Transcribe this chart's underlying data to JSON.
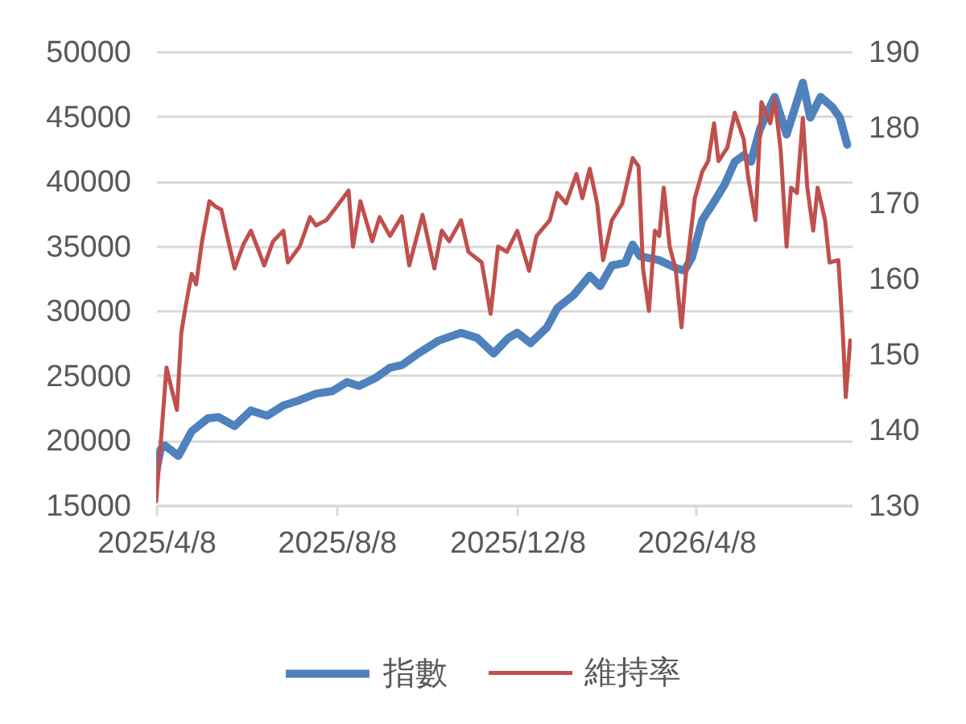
{
  "chart_data": {
    "type": "line",
    "xlim": [
      "2025-04-08",
      "2026-07-22"
    ],
    "xticks": [
      {
        "value": "2025-04-08",
        "label": "2025/4/8"
      },
      {
        "value": "2025-08-08",
        "label": "2025/8/8"
      },
      {
        "value": "2025-12-08",
        "label": "2025/12/8"
      },
      {
        "value": "2026-04-08",
        "label": "2026/4/8"
      }
    ],
    "ylim": [
      15000,
      50000
    ],
    "yticks": [
      15000,
      20000,
      25000,
      30000,
      35000,
      40000,
      45000,
      50000
    ],
    "y2lim": [
      130,
      190
    ],
    "y2ticks": [
      130,
      140,
      150,
      160,
      170,
      180,
      190
    ],
    "grid": "y",
    "legend": "bottom",
    "series": [
      {
        "name": "指數",
        "color": "#4f81bd",
        "x": [
          "2025-04-08",
          "2025-04-11",
          "2025-04-14",
          "2025-04-23",
          "2025-05-02",
          "2025-05-13",
          "2025-05-20",
          "2025-05-31",
          "2025-06-11",
          "2025-06-22",
          "2025-07-03",
          "2025-07-14",
          "2025-07-25",
          "2025-08-05",
          "2025-08-15",
          "2025-08-23",
          "2025-09-03",
          "2025-09-13",
          "2025-09-21",
          "2025-10-02",
          "2025-10-16",
          "2025-10-31",
          "2025-11-11",
          "2025-11-22",
          "2025-12-02",
          "2025-12-08",
          "2025-12-17",
          "2025-12-28",
          "2026-01-04",
          "2026-01-15",
          "2026-01-26",
          "2026-02-02",
          "2026-02-10",
          "2026-02-19",
          "2026-02-24",
          "2026-03-01",
          "2026-03-14",
          "2026-03-25",
          "2026-03-31",
          "2026-04-05",
          "2026-04-12",
          "2026-04-20",
          "2026-04-27",
          "2026-05-04",
          "2026-05-10",
          "2026-05-15",
          "2026-05-21",
          "2026-05-26",
          "2026-05-31",
          "2026-06-08",
          "2026-06-13",
          "2026-06-19",
          "2026-06-24",
          "2026-07-01",
          "2026-07-09",
          "2026-07-14",
          "2026-07-19"
        ],
        "values": [
          17600,
          19300,
          19600,
          18800,
          20700,
          21700,
          21800,
          21100,
          22300,
          21900,
          22700,
          23100,
          23600,
          23800,
          24500,
          24200,
          24800,
          25600,
          25800,
          26700,
          27700,
          28300,
          27900,
          26700,
          27900,
          28300,
          27500,
          28700,
          30200,
          31200,
          32700,
          31900,
          33500,
          33700,
          35100,
          34200,
          33900,
          33300,
          33100,
          34100,
          37000,
          38400,
          39700,
          41500,
          42000,
          41500,
          44000,
          45300,
          46500,
          43600,
          45400,
          47600,
          44900,
          46500,
          45700,
          44900,
          42800
        ]
      },
      {
        "name": "維持率",
        "color": "#c0504d",
        "axis": "y2",
        "x": [
          "2025-04-08",
          "2025-04-11",
          "2025-04-15",
          "2025-04-17",
          "2025-04-22",
          "2025-04-25",
          "2025-04-28",
          "2025-05-02",
          "2025-05-05",
          "2025-05-09",
          "2025-05-14",
          "2025-05-18",
          "2025-05-22",
          "2025-05-26",
          "2025-05-31",
          "2025-06-06",
          "2025-06-11",
          "2025-06-16",
          "2025-06-20",
          "2025-06-26",
          "2025-07-03",
          "2025-07-06",
          "2025-07-14",
          "2025-07-21",
          "2025-07-25",
          "2025-08-01",
          "2025-08-08",
          "2025-08-16",
          "2025-08-19",
          "2025-08-24",
          "2025-09-01",
          "2025-09-06",
          "2025-09-13",
          "2025-09-21",
          "2025-09-26",
          "2025-10-05",
          "2025-10-13",
          "2025-10-18",
          "2025-10-23",
          "2025-10-31",
          "2025-11-05",
          "2025-11-14",
          "2025-11-20",
          "2025-11-25",
          "2025-12-01",
          "2025-12-08",
          "2025-12-16",
          "2025-12-21",
          "2025-12-30",
          "2026-01-04",
          "2026-01-10",
          "2026-01-17",
          "2026-01-21",
          "2026-01-26",
          "2026-01-31",
          "2026-02-04",
          "2026-02-10",
          "2026-02-17",
          "2026-02-24",
          "2026-02-28",
          "2026-03-03",
          "2026-03-07",
          "2026-03-11",
          "2026-03-14",
          "2026-03-17",
          "2026-03-21",
          "2026-03-25",
          "2026-03-29",
          "2026-04-01",
          "2026-04-07",
          "2026-04-12",
          "2026-04-16",
          "2026-04-20",
          "2026-04-23",
          "2026-04-29",
          "2026-05-04",
          "2026-05-10",
          "2026-05-13",
          "2026-05-18",
          "2026-05-22",
          "2026-05-28",
          "2026-05-31",
          "2026-06-04",
          "2026-06-08",
          "2026-06-11",
          "2026-06-15",
          "2026-06-19",
          "2026-06-22",
          "2026-06-26",
          "2026-06-29",
          "2026-07-04",
          "2026-07-07",
          "2026-07-13",
          "2026-07-16",
          "2026-07-18",
          "2026-07-21"
        ],
        "values": [
          130.5,
          138,
          148.2,
          146.5,
          142.6,
          152.8,
          156.4,
          160.6,
          159.2,
          164.9,
          170.2,
          169.5,
          169.1,
          165.6,
          161.3,
          164.5,
          166.3,
          163.8,
          161.7,
          164.9,
          166.3,
          162.1,
          164.2,
          168.1,
          167,
          167.7,
          169.5,
          171.6,
          164.2,
          170.2,
          164.9,
          168.1,
          165.6,
          168.2,
          161.7,
          168.4,
          161.3,
          166.3,
          164.9,
          167.7,
          163.5,
          162.1,
          155.3,
          164.2,
          163.5,
          166.3,
          161,
          165.6,
          167.7,
          171.3,
          169.9,
          173.8,
          170.6,
          174.5,
          169.9,
          162.4,
          167.7,
          169.9,
          175.9,
          174.8,
          161.3,
          155.7,
          166.3,
          165.6,
          172,
          164.2,
          161.3,
          153.5,
          160.6,
          170.6,
          174.1,
          175.5,
          180.5,
          175.5,
          177.3,
          181.9,
          178.4,
          173.4,
          167.7,
          183.3,
          180.5,
          183.7,
          177,
          164.2,
          172,
          171.3,
          181.2,
          172,
          166.3,
          172,
          167.7,
          162.1,
          162.4,
          152.8,
          144.3,
          151.8
        ]
      }
    ]
  }
}
